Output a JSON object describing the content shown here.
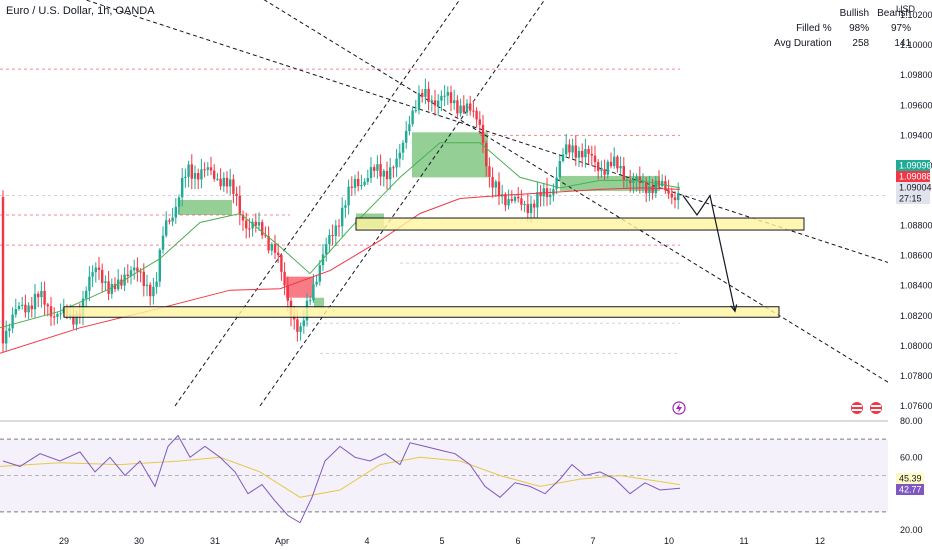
{
  "chart_data": {
    "title": "Euro / U.S. Dollar, 1h, OANDA",
    "currency": "USD",
    "type": "candlestick",
    "price_axis": {
      "ylim": [
        1.075,
        1.103
      ],
      "ticks": [
        "1.10200",
        "1.10000",
        "1.09800",
        "1.09600",
        "1.09400",
        "1.09200",
        "1.08800",
        "1.08600",
        "1.08400",
        "1.08200",
        "1.08000",
        "1.07800",
        "1.07600"
      ]
    },
    "time_axis": {
      "labels": [
        "29",
        "30",
        "31",
        "Apr",
        "4",
        "5",
        "6",
        "7",
        "10",
        "11",
        "12"
      ]
    },
    "price_tags": [
      {
        "label": "1.09096",
        "value": 1.09096,
        "color": "#22ab94",
        "text_color": "#ffffff"
      },
      {
        "label": "1.09088",
        "value": 1.09088,
        "color": "#f23645",
        "text_color": "#ffffff"
      },
      {
        "label": "1.09004",
        "value": 1.09004,
        "color": "#e0e3eb",
        "text_color": "#131722"
      },
      {
        "label": "27:15",
        "value": 1.0895,
        "color": "#e0e3eb",
        "text_color": "#131722"
      }
    ],
    "stats_table": {
      "headers": [
        "",
        "Bullish",
        "Bearish"
      ],
      "rows": [
        [
          "Filled %",
          "98%",
          "97%"
        ],
        [
          "Avg Duration",
          "258",
          "141"
        ]
      ]
    },
    "price_path": [
      [
        3,
        1.0808
      ],
      [
        20,
        1.0825
      ],
      [
        38,
        1.0832
      ],
      [
        55,
        1.0822
      ],
      [
        70,
        1.0818
      ],
      [
        82,
        1.0826
      ],
      [
        97,
        1.0857
      ],
      [
        110,
        1.0832
      ],
      [
        125,
        1.085
      ],
      [
        142,
        1.0846
      ],
      [
        155,
        1.0835
      ],
      [
        165,
        1.0882
      ],
      [
        176,
        1.0893
      ],
      [
        188,
        1.0917
      ],
      [
        205,
        1.0915
      ],
      [
        222,
        1.0912
      ],
      [
        236,
        1.0898
      ],
      [
        248,
        1.0878
      ],
      [
        262,
        1.0878
      ],
      [
        275,
        1.0862
      ],
      [
        288,
        1.0832
      ],
      [
        300,
        1.0805
      ],
      [
        312,
        1.084
      ],
      [
        325,
        1.0862
      ],
      [
        340,
        1.0888
      ],
      [
        355,
        1.0908
      ],
      [
        370,
        1.0914
      ],
      [
        385,
        1.0917
      ],
      [
        398,
        1.092
      ],
      [
        410,
        1.0955
      ],
      [
        424,
        1.0966
      ],
      [
        440,
        1.0964
      ],
      [
        455,
        1.0963
      ],
      [
        468,
        1.0955
      ],
      [
        480,
        1.0951
      ],
      [
        490,
        1.0905
      ],
      [
        505,
        1.09
      ],
      [
        520,
        1.0893
      ],
      [
        535,
        1.0896
      ],
      [
        550,
        1.0902
      ],
      [
        562,
        1.0925
      ],
      [
        574,
        1.0933
      ],
      [
        588,
        1.0925
      ],
      [
        605,
        1.0918
      ],
      [
        620,
        1.092
      ],
      [
        632,
        1.0907
      ],
      [
        645,
        1.0908
      ],
      [
        658,
        1.0905
      ],
      [
        670,
        1.0903
      ],
      [
        680,
        1.0899
      ]
    ],
    "ema_short": [
      [
        0,
        1.0812
      ],
      [
        60,
        1.0823
      ],
      [
        110,
        1.0838
      ],
      [
        160,
        1.0858
      ],
      [
        200,
        1.0882
      ],
      [
        240,
        1.0888
      ],
      [
        280,
        1.0866
      ],
      [
        310,
        1.0848
      ],
      [
        350,
        1.0878
      ],
      [
        400,
        1.0912
      ],
      [
        440,
        1.0935
      ],
      [
        480,
        1.0935
      ],
      [
        520,
        1.0912
      ],
      [
        560,
        1.0905
      ],
      [
        600,
        1.091
      ],
      [
        640,
        1.091
      ],
      [
        680,
        1.0905
      ]
    ],
    "ema_long": [
      [
        0,
        1.0795
      ],
      [
        80,
        1.0812
      ],
      [
        160,
        1.0825
      ],
      [
        230,
        1.0837
      ],
      [
        280,
        1.0838
      ],
      [
        330,
        1.085
      ],
      [
        380,
        1.087
      ],
      [
        420,
        1.0888
      ],
      [
        460,
        1.0898
      ],
      [
        500,
        1.09
      ],
      [
        550,
        1.0902
      ],
      [
        600,
        1.0904
      ],
      [
        640,
        1.0905
      ],
      [
        680,
        1.0904
      ]
    ],
    "fvg_zones": [
      {
        "x1": 178,
        "x2": 232,
        "y_top": 1.0897,
        "y_bot": 1.0887,
        "color": "#4caf50"
      },
      {
        "x1": 412,
        "x2": 488,
        "y_top": 1.0942,
        "y_bot": 1.0912,
        "color": "#4caf50"
      },
      {
        "x1": 560,
        "x2": 660,
        "y_top": 1.0913,
        "y_bot": 1.0903,
        "color": "#4caf50"
      },
      {
        "x1": 356,
        "x2": 384,
        "y_top": 1.0888,
        "y_bot": 1.0878,
        "color": "#4caf50"
      },
      {
        "x1": 286,
        "x2": 314,
        "y_top": 1.0846,
        "y_bot": 1.0832,
        "color": "#f23645"
      },
      {
        "x1": 314,
        "x2": 324,
        "y_top": 1.0832,
        "y_bot": 1.0825,
        "color": "#4caf50"
      }
    ],
    "sr_boxes": [
      {
        "x1": 356,
        "x2": 804,
        "y_top": 1.0885,
        "y_bot": 1.0877
      },
      {
        "x1": 64,
        "x2": 779,
        "y_top": 1.0826,
        "y_bot": 1.0819
      }
    ],
    "dashed_levels": [
      {
        "x1": 0,
        "x2": 680,
        "value": 1.0984,
        "color": "#f23645"
      },
      {
        "x1": 480,
        "x2": 680,
        "value": 1.094,
        "color": "#f23645"
      },
      {
        "x1": 0,
        "x2": 890,
        "value": 1.09,
        "color": "#b2b5be"
      },
      {
        "x1": 0,
        "x2": 290,
        "value": 1.0887,
        "color": "#f23645"
      },
      {
        "x1": 0,
        "x2": 680,
        "value": 1.0867,
        "color": "#f23645"
      },
      {
        "x1": 400,
        "x2": 680,
        "value": 1.0855,
        "color": "#b2b5be"
      },
      {
        "x1": 300,
        "x2": 680,
        "value": 1.0815,
        "color": "#b2b5be"
      },
      {
        "x1": 320,
        "x2": 680,
        "value": 1.0795,
        "color": "#b2b5be"
      }
    ],
    "trend_lines": [
      {
        "p1": [
          40,
          1.104
        ],
        "p2": [
          890,
          1.0855
        ]
      },
      {
        "p1": [
          240,
          1.104
        ],
        "p2": [
          890,
          1.0775
        ]
      },
      {
        "p1": [
          175,
          1.076
        ],
        "p2": [
          470,
          1.104
        ]
      },
      {
        "p1": [
          260,
          1.076
        ],
        "p2": [
          555,
          1.104
        ]
      }
    ],
    "projection_arrow": [
      [
        683,
        1.09
      ],
      [
        697,
        1.0887
      ],
      [
        710,
        1.09
      ],
      [
        735,
        1.0823
      ]
    ],
    "rsi": {
      "ylim": [
        20,
        80
      ],
      "ticks": [
        "80.00",
        "60.00",
        "20.00"
      ],
      "upper_band": 70,
      "mid_band": 50,
      "lower_band": 30,
      "value_label": "42.77",
      "ma_label": "45.39",
      "rsi_path": [
        [
          3,
          58
        ],
        [
          20,
          55
        ],
        [
          40,
          62
        ],
        [
          60,
          58
        ],
        [
          80,
          63
        ],
        [
          95,
          52
        ],
        [
          110,
          60
        ],
        [
          125,
          50
        ],
        [
          140,
          58
        ],
        [
          155,
          44
        ],
        [
          168,
          66
        ],
        [
          178,
          72
        ],
        [
          190,
          60
        ],
        [
          205,
          66
        ],
        [
          220,
          60
        ],
        [
          235,
          52
        ],
        [
          248,
          40
        ],
        [
          262,
          45
        ],
        [
          275,
          36
        ],
        [
          288,
          28
        ],
        [
          300,
          24
        ],
        [
          312,
          38
        ],
        [
          325,
          58
        ],
        [
          340,
          66
        ],
        [
          355,
          60
        ],
        [
          370,
          58
        ],
        [
          385,
          62
        ],
        [
          400,
          56
        ],
        [
          410,
          68
        ],
        [
          425,
          66
        ],
        [
          440,
          64
        ],
        [
          455,
          62
        ],
        [
          470,
          56
        ],
        [
          485,
          44
        ],
        [
          500,
          38
        ],
        [
          515,
          46
        ],
        [
          530,
          44
        ],
        [
          545,
          40
        ],
        [
          560,
          48
        ],
        [
          572,
          56
        ],
        [
          585,
          50
        ],
        [
          600,
          52
        ],
        [
          615,
          48
        ],
        [
          630,
          40
        ],
        [
          645,
          46
        ],
        [
          660,
          42
        ],
        [
          680,
          43
        ]
      ],
      "ma_path": [
        [
          0,
          55
        ],
        [
          60,
          57
        ],
        [
          120,
          56
        ],
        [
          180,
          58
        ],
        [
          220,
          60
        ],
        [
          260,
          52
        ],
        [
          300,
          38
        ],
        [
          340,
          42
        ],
        [
          380,
          56
        ],
        [
          420,
          60
        ],
        [
          460,
          58
        ],
        [
          500,
          50
        ],
        [
          540,
          44
        ],
        [
          580,
          48
        ],
        [
          620,
          50
        ],
        [
          680,
          45
        ]
      ]
    }
  },
  "colors": {
    "bull": "#22ab94",
    "bear": "#f23645",
    "ema_short": "#4caf50",
    "ema_long": "#f23645",
    "rsi": "#7e57c2",
    "rsi_ma": "#e6c84a",
    "box": "#fff59d"
  }
}
